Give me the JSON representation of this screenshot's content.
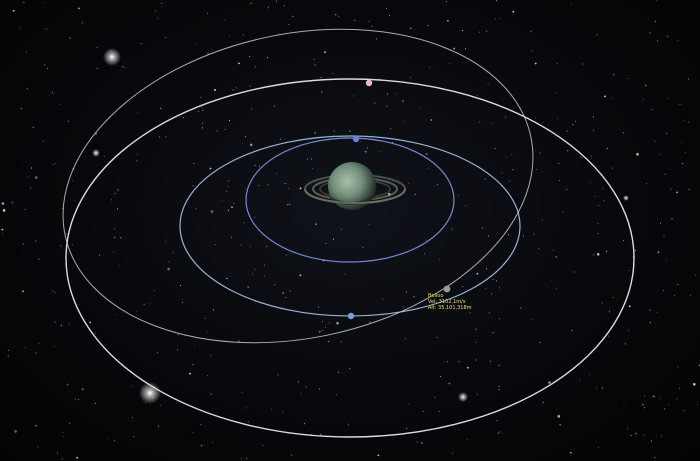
{
  "scene": {
    "view": "orbital-map",
    "central_body": {
      "type": "ringed-gas-giant",
      "color": "#7f9a86"
    },
    "orbit_colors": {
      "outer": "#e8e8ec",
      "inclined": "#d8d4d8",
      "middle": "#a8c4e8",
      "inner": "#7d8fe0"
    },
    "moon_colors": {
      "outer": "#f0b8c0",
      "middle": "#7aa0d8",
      "inner": "#6b7fe0",
      "vessel": "#9a9a9a"
    }
  },
  "vessel": {
    "name": "Belloo",
    "velocity": "Vel: 3102.1m/s",
    "altitude": "Alt: 35,101,318m"
  }
}
